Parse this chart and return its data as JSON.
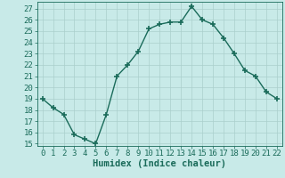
{
  "x": [
    0,
    1,
    2,
    3,
    4,
    5,
    6,
    7,
    8,
    9,
    10,
    11,
    12,
    13,
    14,
    15,
    16,
    17,
    18,
    19,
    20,
    21,
    22
  ],
  "y": [
    19.0,
    18.2,
    17.6,
    15.8,
    15.4,
    15.0,
    17.6,
    21.0,
    22.0,
    23.2,
    25.2,
    25.6,
    25.8,
    25.8,
    27.2,
    26.0,
    25.6,
    24.4,
    23.0,
    21.5,
    21.0,
    19.6,
    19.0
  ],
  "line_color": "#1a6b5a",
  "marker": "+",
  "markersize": 4,
  "markeredgewidth": 1.2,
  "linewidth": 1.0,
  "bg_color": "#c8eae8",
  "grid_color": "#aacfcc",
  "xlabel": "Humidex (Indice chaleur)",
  "xlim": [
    -0.5,
    22.5
  ],
  "ylim": [
    14.8,
    27.6
  ],
  "yticks": [
    15,
    16,
    17,
    18,
    19,
    20,
    21,
    22,
    23,
    24,
    25,
    26,
    27
  ],
  "xticks": [
    0,
    1,
    2,
    3,
    4,
    5,
    6,
    7,
    8,
    9,
    10,
    11,
    12,
    13,
    14,
    15,
    16,
    17,
    18,
    19,
    20,
    21,
    22
  ],
  "xlabel_fontsize": 7.5,
  "tick_fontsize": 6.5
}
